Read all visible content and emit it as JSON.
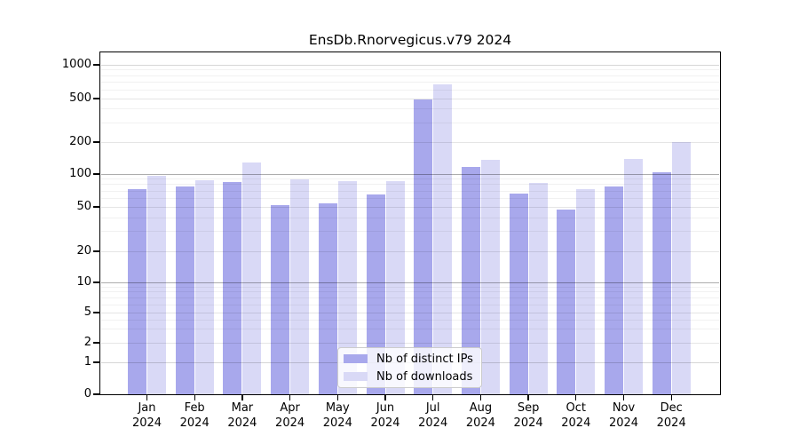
{
  "title": "EnsDb.Rnorvegicus.v79 2024",
  "colors": {
    "ips_bar": "#a8a8ec",
    "downloads_bar": "#d9d9f6",
    "axis": "#000000",
    "grid_strong": "rgba(0,0,0,0.32)",
    "grid_medium": "rgba(0,0,0,0.16)",
    "grid_weak": "rgba(0,0,0,0.10)",
    "grid_minor": "rgba(0,0,0,0.055)",
    "legend_border": "#cccccc"
  },
  "x_axis": {
    "months": [
      "Jan",
      "Feb",
      "Mar",
      "Apr",
      "May",
      "Jun",
      "Jul",
      "Aug",
      "Sep",
      "Oct",
      "Nov",
      "Dec"
    ],
    "year": "2024"
  },
  "y_axis": {
    "tick_labels": [
      "0",
      "1",
      "2",
      "5",
      "10",
      "20",
      "50",
      "100",
      "200",
      "500",
      "1000"
    ]
  },
  "chart_data": {
    "type": "bar",
    "title": "EnsDb.Rnorvegicus.v79 2024",
    "categories": [
      "Jan 2024",
      "Feb 2024",
      "Mar 2024",
      "Apr 2024",
      "May 2024",
      "Jun 2024",
      "Jul 2024",
      "Aug 2024",
      "Sep 2024",
      "Oct 2024",
      "Nov 2024",
      "Dec 2024"
    ],
    "series": [
      {
        "name": "Nb of distinct IPs",
        "color": "#a8a8ec",
        "values": [
          73,
          77,
          85,
          52,
          54,
          65,
          490,
          116,
          66,
          47,
          77,
          103
        ]
      },
      {
        "name": "Nb of downloads",
        "color": "#d9d9f6",
        "values": [
          97,
          88,
          129,
          89,
          86,
          86,
          665,
          136,
          83,
          73,
          139,
          199
        ]
      }
    ],
    "xlabel": "",
    "ylabel": "",
    "y_ticks": [
      0,
      1,
      2,
      5,
      10,
      20,
      50,
      100,
      200,
      500,
      1000
    ],
    "y_scale": "log-like (asinh): log spacing above ~5, compressed linear toward 0",
    "ylim": [
      0,
      1100
    ],
    "grid": true,
    "minor_grid": true,
    "legend_position": "lower center"
  }
}
